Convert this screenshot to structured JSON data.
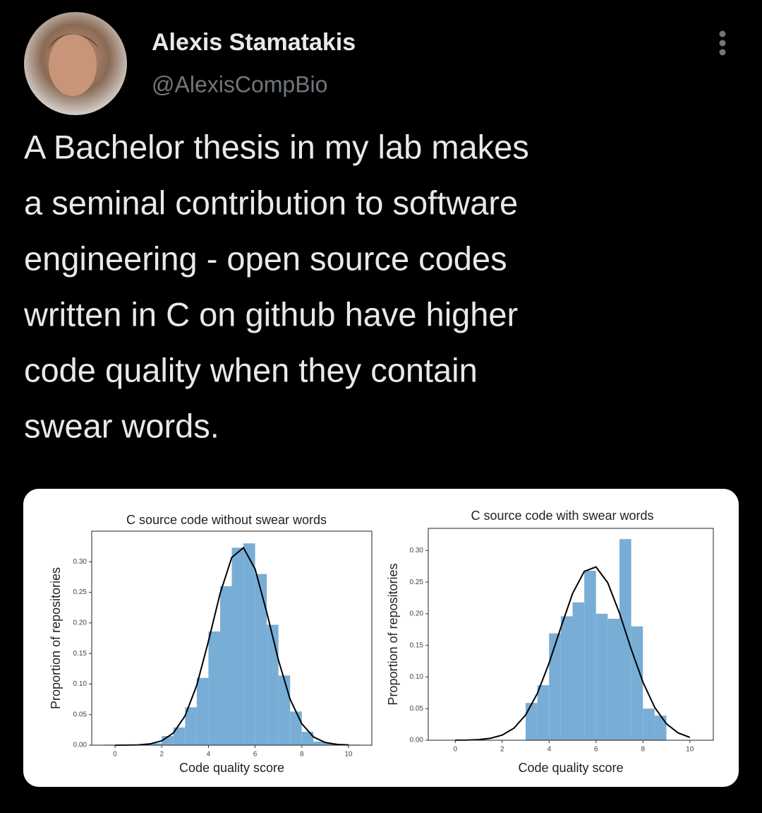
{
  "user": {
    "name": "Alexis Stamatakis",
    "handle": "@AlexisCompBio"
  },
  "tweet": {
    "lines": [
      "A Bachelor thesis in my lab makes",
      "a seminal contribution to software",
      "engineering - open source codes",
      "written in C on github have higher",
      "code quality when they contain",
      "swear words."
    ]
  },
  "chart_data": [
    {
      "type": "histogram",
      "title": "C source code without swear words",
      "x_label": "Code quality score",
      "y_label": "Proportion of repositories",
      "color": "#78aed6",
      "bins": [
        -0.5,
        0,
        0.5,
        1,
        1.5,
        2,
        2.5,
        3,
        3.5,
        4,
        4.5,
        5,
        5.5,
        6,
        6.5,
        7,
        7.5,
        8,
        8.5,
        9,
        9.5,
        10,
        10.5
      ],
      "values": [
        0.001,
        0.001,
        0.001,
        0.002,
        0.003,
        0.015,
        0.029,
        0.062,
        0.11,
        0.186,
        0.26,
        0.323,
        0.33,
        0.28,
        0.197,
        0.114,
        0.055,
        0.022,
        0.006,
        0.003,
        0.002,
        0.001
      ],
      "fit": {
        "color": "#000000",
        "x": [
          0,
          0.5,
          1,
          1.5,
          2,
          2.5,
          3,
          3.5,
          4,
          4.5,
          5,
          5.5,
          6,
          6.5,
          7,
          7.5,
          8,
          8.5,
          9,
          9.5,
          10
        ],
        "y": [
          0,
          0.0001,
          0.0005,
          0.0021,
          0.0071,
          0.02,
          0.048,
          0.098,
          0.17,
          0.248,
          0.307,
          0.323,
          0.288,
          0.217,
          0.139,
          0.075,
          0.035,
          0.0135,
          0.0045,
          0.0013,
          0.0003
        ]
      },
      "xlim": [
        -1,
        11
      ],
      "ylim": [
        0,
        0.35
      ],
      "xticks": [
        0,
        2,
        4,
        6,
        8,
        10
      ],
      "yticks": [
        {
          "value": 0,
          "label": "0.00"
        },
        0.05,
        {
          "value": 0.1,
          "label": "0.10"
        },
        0.15,
        {
          "value": 0.2,
          "label": "0.20"
        },
        0.25,
        {
          "value": 0.3,
          "label": "0.30"
        }
      ]
    },
    {
      "type": "histogram",
      "title": "C source code with swear words",
      "x_label": "Code quality score",
      "y_label": "Proportion of repositories",
      "color": "#78aed6",
      "bins": [
        3,
        3.5,
        4,
        4.5,
        5,
        5.5,
        6,
        6.5,
        7,
        7.5,
        8,
        8.5,
        9
      ],
      "values": [
        0.059,
        0.087,
        0.169,
        0.196,
        0.218,
        0.268,
        0.2,
        0.192,
        0.318,
        0.18,
        0.05,
        0.039
      ],
      "fit": {
        "color": "#000000",
        "x": [
          0,
          0.5,
          1,
          1.5,
          2,
          2.5,
          3,
          3.5,
          4,
          4.5,
          5,
          5.5,
          6,
          6.5,
          7,
          7.5,
          8,
          8.5,
          9,
          9.5,
          10
        ],
        "y": [
          0.0001,
          0.0003,
          0.001,
          0.0031,
          0.0081,
          0.019,
          0.04,
          0.074,
          0.122,
          0.178,
          0.232,
          0.267,
          0.274,
          0.249,
          0.201,
          0.144,
          0.092,
          0.052,
          0.026,
          0.0116,
          0.0046
        ]
      },
      "xlim": [
        -1.15,
        11
      ],
      "ylim": [
        0,
        0.335
      ],
      "xticks": [
        0,
        2,
        4,
        6,
        8,
        10
      ],
      "yticks": [
        {
          "value": 0,
          "label": "0.00"
        },
        0.05,
        {
          "value": 0.1,
          "label": "0.10"
        },
        0.15,
        {
          "value": 0.2,
          "label": "0.20"
        },
        0.25,
        {
          "value": 0.3,
          "label": "0.30"
        }
      ]
    }
  ]
}
